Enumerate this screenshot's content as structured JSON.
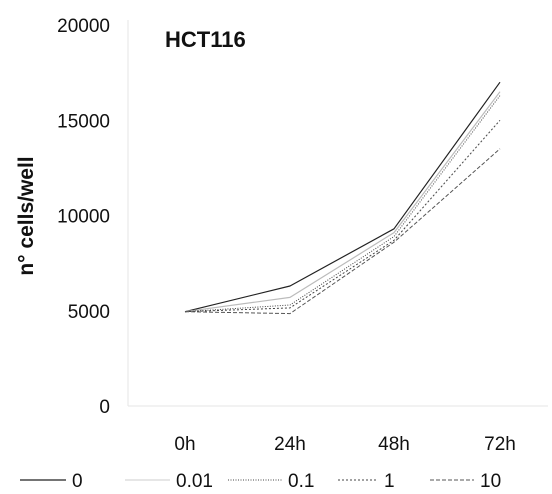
{
  "chart_data": {
    "type": "line",
    "title": "HCT116",
    "xlabel": "",
    "ylabel": "n° cells/well",
    "categories": [
      "0h",
      "24h",
      "48h",
      "72h"
    ],
    "ylim": [
      0,
      20000
    ],
    "yticks": [
      "20000",
      "15000",
      "10000",
      "5000",
      "0"
    ],
    "ytick_values": [
      20000,
      15000,
      10000,
      5000,
      0
    ],
    "grid": false,
    "legend_position": "bottom",
    "series": [
      {
        "name": "0",
        "values": [
          4950,
          6300,
          9300,
          17000
        ],
        "dash": "solid",
        "color": "#222222"
      },
      {
        "name": "0.01",
        "values": [
          4950,
          5700,
          9100,
          16500
        ],
        "dash": "faint",
        "color": "#bbbbbb"
      },
      {
        "name": "0.1",
        "values": [
          4950,
          5300,
          8900,
          16300
        ],
        "dash": "dotted",
        "color": "#444444"
      },
      {
        "name": "1",
        "values": [
          4950,
          5150,
          8700,
          15000
        ],
        "dash": "dashed",
        "color": "#444444"
      },
      {
        "name": "10",
        "values": [
          4950,
          4850,
          8600,
          13500
        ],
        "dash": "dashed2",
        "color": "#555555"
      }
    ]
  }
}
